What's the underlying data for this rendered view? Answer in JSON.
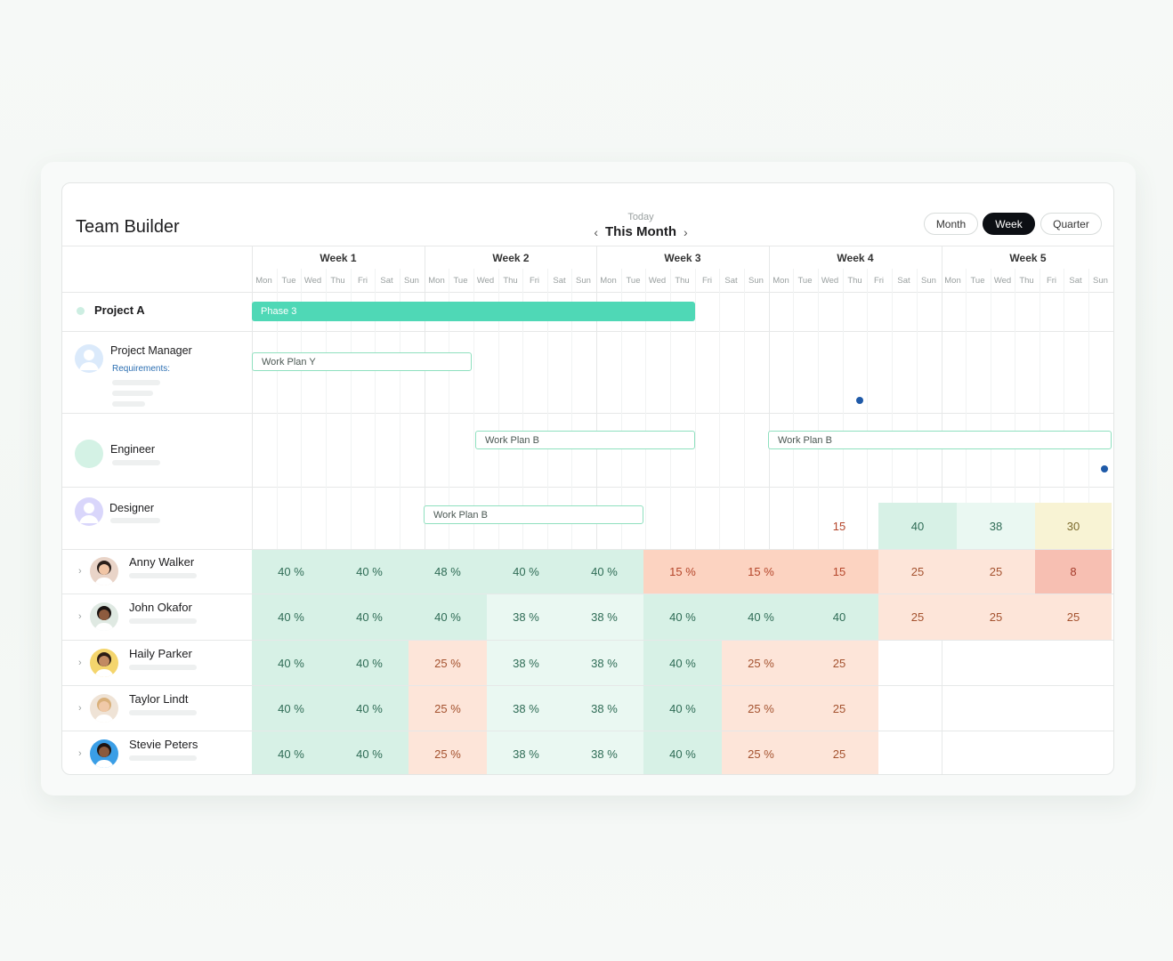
{
  "header": {
    "title": "Team Builder",
    "today_label": "Today",
    "period_label": "This Month",
    "prev_icon": "chevron-left-icon",
    "next_icon": "chevron-right-icon",
    "view_options": [
      "Month",
      "Week",
      "Quarter"
    ],
    "active_view": "Week"
  },
  "timeline": {
    "weeks": [
      "Week 1",
      "Week 2",
      "Week 3",
      "Week 4",
      "Week 5"
    ],
    "days": [
      "Mon",
      "Tue",
      "Wed",
      "Thu",
      "Fri",
      "Sat",
      "Sun"
    ]
  },
  "project": {
    "name": "Project A",
    "phase_label": "Phase 3"
  },
  "roles": [
    {
      "name": "Project Manager",
      "requirements_label": "Requirements:",
      "plans": [
        "Work Plan Y"
      ]
    },
    {
      "name": "Engineer",
      "plans": [
        "Work Plan B",
        "Work Plan B"
      ]
    },
    {
      "name": "Designer",
      "plans": [
        "Work Plan B"
      ],
      "capacity": [
        "15",
        "40",
        "38",
        "30"
      ]
    }
  ],
  "people": [
    {
      "name": "Anny Walker",
      "cells": [
        "40 %",
        "40 %",
        "48 %",
        "40 %",
        "40 %",
        "15 %",
        "15 %",
        "15",
        "25",
        "25",
        "8"
      ]
    },
    {
      "name": "John Okafor",
      "cells": [
        "40 %",
        "40 %",
        "40 %",
        "38 %",
        "38 %",
        "40 %",
        "40 %",
        "40",
        "25",
        "25",
        "25"
      ]
    },
    {
      "name": "Haily Parker",
      "cells": [
        "40 %",
        "40 %",
        "25 %",
        "38 %",
        "38 %",
        "40 %",
        "25 %",
        "25"
      ]
    },
    {
      "name": "Taylor Lindt",
      "cells": [
        "40 %",
        "40 %",
        "25 %",
        "38 %",
        "38 %",
        "40 %",
        "25 %",
        "25"
      ]
    },
    {
      "name": "Stevie Peters",
      "cells": [
        "40 %",
        "40 %",
        "25 %",
        "38 %",
        "38 %",
        "40 %",
        "25 %",
        "25"
      ]
    }
  ],
  "colors": {
    "phase": "#4fd8b6",
    "plan_border": "#8fe0bf",
    "active_toggle": "#0c0f14",
    "requirements_text": "#2c6fb2",
    "marker_dot": "#1f5aa8"
  }
}
